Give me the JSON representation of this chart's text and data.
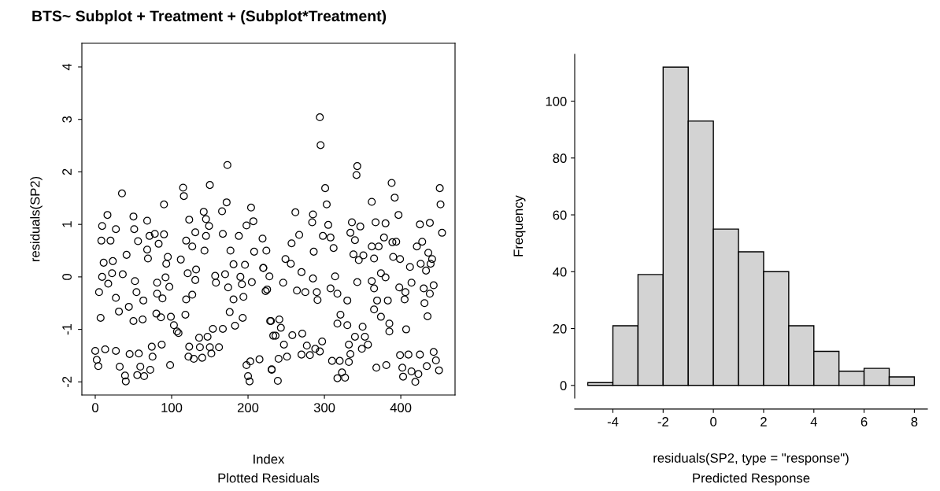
{
  "chart_data": [
    {
      "type": "scatter",
      "title": "BTS~ Subplot + Treatment + (Subplot*Treatment)",
      "xlabel": "Index",
      "ylabel": "residuals(SP2)",
      "annotations": [
        "Plotted Residuals"
      ],
      "marker": "circle",
      "grid": false,
      "legend": false,
      "xlim": [
        -17.5,
        471
      ],
      "ylim": [
        -2.25,
        4.45
      ],
      "xticks": [
        0,
        100,
        200,
        300,
        400
      ],
      "yticks": [
        -2,
        -1,
        0,
        1,
        2,
        3,
        4
      ],
      "series": [
        {
          "color": "#000000",
          "x": [
            35,
            173,
            150,
            115,
            116,
            90,
            16,
            9,
            8,
            20,
            27,
            50,
            68,
            51,
            71,
            56,
            78,
            90,
            68,
            83,
            11,
            23,
            41,
            36,
            9,
            17,
            22,
            5,
            7,
            27,
            31,
            44,
            50,
            54,
            52,
            63,
            62,
            69,
            81,
            81,
            88,
            80,
            86,
            95,
            93,
            92,
            97,
            99,
            103,
            107,
            112,
            121,
            119,
            123,
            131,
            127,
            132,
            131,
            127,
            119,
            118,
            142,
            145,
            145,
            149,
            143,
            157,
            158,
            167,
            166,
            172,
            170,
            174,
            177,
            181,
            176,
            183,
            188,
            181,
            190,
            192,
            194,
            193,
            198,
            204,
            207,
            205,
            196,
            208,
            219,
            220,
            223,
            224,
            229,
            0,
            2,
            4,
            13,
            27,
            32,
            39,
            40,
            45,
            57,
            59,
            55,
            64,
            72,
            75,
            74,
            87,
            98,
            109,
            123,
            122,
            129,
            136,
            140,
            137,
            147,
            154,
            150,
            162,
            167,
            152,
            198,
            203,
            200,
            202,
            215,
            231,
            233,
            294,
            295,
            343,
            342,
            388,
            392,
            301,
            303,
            362,
            451,
            452,
            454,
            262,
            285,
            284,
            305,
            336,
            347,
            367,
            380,
            397,
            425,
            438,
            267,
            257,
            298,
            308,
            312,
            286,
            334,
            340,
            338,
            345,
            351,
            362,
            371,
            365,
            378,
            389,
            394,
            390,
            399,
            412,
            421,
            428,
            436,
            441,
            439,
            426,
            433,
            249,
            256,
            270,
            220,
            228,
            246,
            225,
            264,
            275,
            285,
            290,
            291,
            314,
            308,
            317,
            330,
            343,
            362,
            374,
            380,
            365,
            369,
            383,
            365,
            374,
            385,
            385,
            398,
            406,
            405,
            414,
            430,
            438,
            443,
            431,
            435,
            407,
            230,
            241,
            243,
            236,
            247,
            251,
            258,
            271,
            277,
            281,
            270,
            297,
            294,
            288,
            240,
            231,
            239,
            317,
            321,
            330,
            340,
            350,
            353,
            357,
            349,
            332,
            334,
            332,
            310,
            320,
            323,
            317,
            327,
            368,
            381,
            399,
            410,
            425,
            402,
            403,
            414,
            419,
            423,
            434,
            443,
            446,
            450
          ],
          "values": [
            1.59,
            2.13,
            1.75,
            1.7,
            1.54,
            1.38,
            1.18,
            0.97,
            0.69,
            0.69,
            0.91,
            1.15,
            1.07,
            0.91,
            0.78,
            0.68,
            0.82,
            0.81,
            0.52,
            0.63,
            0.27,
            0.3,
            0.42,
            0.05,
            0.0,
            -0.13,
            0.07,
            -0.29,
            -0.78,
            -0.4,
            -0.66,
            -0.57,
            -0.84,
            -0.29,
            -0.08,
            -0.45,
            -0.81,
            0.35,
            -0.11,
            -0.32,
            -0.41,
            -0.7,
            -0.77,
            0.38,
            0.25,
            -0.01,
            -0.19,
            -0.76,
            -0.92,
            -1.04,
            0.33,
            0.07,
            0.69,
            1.09,
            0.85,
            0.58,
            0.14,
            -0.06,
            -0.34,
            -0.43,
            -0.72,
            1.24,
            1.1,
            0.78,
            0.97,
            0.5,
            0.02,
            -0.11,
            0.82,
            1.25,
            1.42,
            0.05,
            -0.2,
            0.5,
            -0.43,
            -0.67,
            -0.93,
            0.78,
            0.24,
            0.0,
            -0.14,
            -0.38,
            -0.78,
            0.98,
            1.32,
            1.06,
            -0.1,
            0.23,
            0.48,
            0.73,
            0.17,
            -0.27,
            0.5,
            -0.84,
            -1.41,
            -1.58,
            -1.7,
            -1.38,
            -1.41,
            -1.71,
            -1.88,
            -1.99,
            -1.47,
            -1.46,
            -1.71,
            -1.87,
            -1.89,
            -1.77,
            -1.52,
            -1.33,
            -1.29,
            -1.68,
            -1.07,
            -1.33,
            -1.52,
            -1.56,
            -1.16,
            -1.54,
            -1.34,
            -1.14,
            -0.99,
            -1.34,
            -1.34,
            -0.99,
            -1.46,
            -1.68,
            -1.61,
            -1.89,
            -1.99,
            -1.57,
            -1.77,
            -1.12,
            3.04,
            2.51,
            2.11,
            1.94,
            1.79,
            1.51,
            1.69,
            1.38,
            1.43,
            1.69,
            1.38,
            0.84,
            1.23,
            1.19,
            1.04,
            0.99,
            1.04,
            0.96,
            1.04,
            1.02,
            1.18,
            1.0,
            1.03,
            0.8,
            0.64,
            0.78,
            0.75,
            0.55,
            0.48,
            0.84,
            0.7,
            0.43,
            0.32,
            0.41,
            0.58,
            0.58,
            0.35,
            0.75,
            0.66,
            0.67,
            0.38,
            0.34,
            0.19,
            0.58,
            0.67,
            0.46,
            0.34,
            0.25,
            0.25,
            0.12,
            0.34,
            0.25,
            0.09,
            0.17,
            0.01,
            -0.11,
            -0.24,
            -0.26,
            -0.29,
            -0.03,
            -0.29,
            -0.44,
            0.01,
            -0.22,
            -0.32,
            -0.45,
            -0.1,
            -0.08,
            0.07,
            -0.01,
            -0.22,
            -0.45,
            -0.45,
            -0.62,
            -0.76,
            -0.89,
            -1.04,
            -0.2,
            -0.29,
            -0.43,
            -0.11,
            -0.22,
            -0.32,
            -0.16,
            -0.5,
            -0.75,
            -1.0,
            -0.84,
            -0.81,
            -0.97,
            -1.12,
            -1.29,
            -1.52,
            -1.11,
            -1.08,
            -1.31,
            -1.49,
            -1.48,
            -1.23,
            -1.42,
            -1.37,
            -1.56,
            -1.76,
            -1.98,
            -0.89,
            -0.72,
            -0.92,
            -1.14,
            -0.95,
            -1.14,
            -1.29,
            -1.37,
            -1.29,
            -1.47,
            -1.62,
            -1.6,
            -1.6,
            -1.82,
            -1.93,
            -1.92,
            -1.73,
            -1.68,
            -1.49,
            -1.48,
            -1.48,
            -1.73,
            -1.9,
            -1.8,
            -2.0,
            -1.85,
            -1.7,
            -1.43,
            -1.59,
            -1.78
          ]
        }
      ]
    },
    {
      "type": "histogram",
      "xlabel": "residuals(SP2, type = \"response\")",
      "ylabel": "Frequency",
      "annotations": [
        "Predicted Response"
      ],
      "grid": false,
      "legend": false,
      "color": "#d3d3d3",
      "bins": [
        -5,
        -4,
        -3,
        -2,
        -1,
        0,
        1,
        2,
        3,
        4,
        5,
        6,
        7,
        8
      ],
      "values": [
        1,
        21,
        39,
        112,
        93,
        55,
        47,
        40,
        21,
        12,
        5,
        6,
        3
      ],
      "xlim": [
        -5.52,
        8.52
      ],
      "ylim": [
        -4.48,
        116.48
      ],
      "xticks": [
        -4,
        -2,
        0,
        2,
        4,
        6,
        8
      ],
      "yticks": [
        0,
        20,
        40,
        60,
        80,
        100
      ]
    }
  ]
}
